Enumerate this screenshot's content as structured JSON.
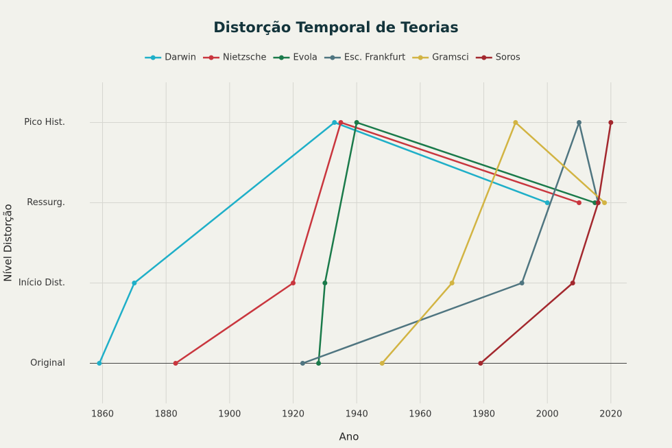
{
  "chart_data": {
    "type": "line",
    "title": "Distorção Temporal de Teorias",
    "x_label": "Ano",
    "y_label": "Nível Distorção",
    "xlim": [
      1856,
      2025
    ],
    "xticks": [
      1860,
      1880,
      1900,
      1920,
      1940,
      1960,
      1980,
      2000,
      2020
    ],
    "ylim": [
      -0.5,
      3.5
    ],
    "yticks": [
      {
        "value": 0,
        "label": "Original"
      },
      {
        "value": 1,
        "label": "Início Dist."
      },
      {
        "value": 2,
        "label": "Ressurg."
      },
      {
        "value": 3,
        "label": "Pico Hist."
      }
    ],
    "grid": true,
    "legend": "top",
    "series": [
      {
        "name": "Darwin",
        "color": "#1fafc8",
        "x": [
          1859,
          1870,
          1933,
          2000
        ],
        "values": [
          0,
          1,
          3,
          2
        ]
      },
      {
        "name": "Nietzsche",
        "color": "#c9363e",
        "x": [
          1883,
          1920,
          1935,
          2010
        ],
        "values": [
          0,
          1,
          3,
          2
        ]
      },
      {
        "name": "Evola",
        "color": "#1a7a4a",
        "x": [
          1928,
          1930,
          1940,
          2015
        ],
        "values": [
          0,
          1,
          3,
          2
        ]
      },
      {
        "name": "Esc. Frankfurt",
        "color": "#4f7580",
        "x": [
          1923,
          1992,
          2010,
          2016
        ],
        "values": [
          0,
          1,
          3,
          2
        ]
      },
      {
        "name": "Gramsci",
        "color": "#d2b443",
        "x": [
          1948,
          1970,
          1990,
          2018
        ],
        "values": [
          0,
          1,
          3,
          2
        ]
      },
      {
        "name": "Soros",
        "color": "#a3282e",
        "x": [
          1979,
          2008,
          2016,
          2020
        ],
        "values": [
          0,
          1,
          2,
          3
        ]
      }
    ]
  }
}
